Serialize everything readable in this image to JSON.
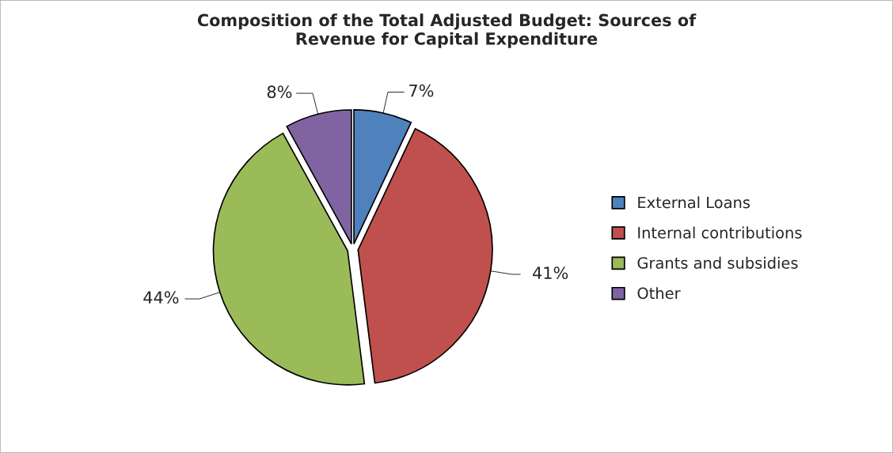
{
  "chart_data": {
    "type": "pie",
    "title": "Composition of the Total Adjusted Budget: Sources of\nRevenue for Capital Expenditure",
    "categories": [
      "External Loans",
      "Internal contributions",
      "Grants and subsidies",
      "Other"
    ],
    "values": [
      7,
      41,
      44,
      8
    ],
    "colors": [
      "#4f81bd",
      "#c0504d",
      "#9bbb59",
      "#8064a2"
    ],
    "value_labels": [
      "7%",
      "41%",
      "44%",
      "8%"
    ],
    "legend": "right"
  }
}
